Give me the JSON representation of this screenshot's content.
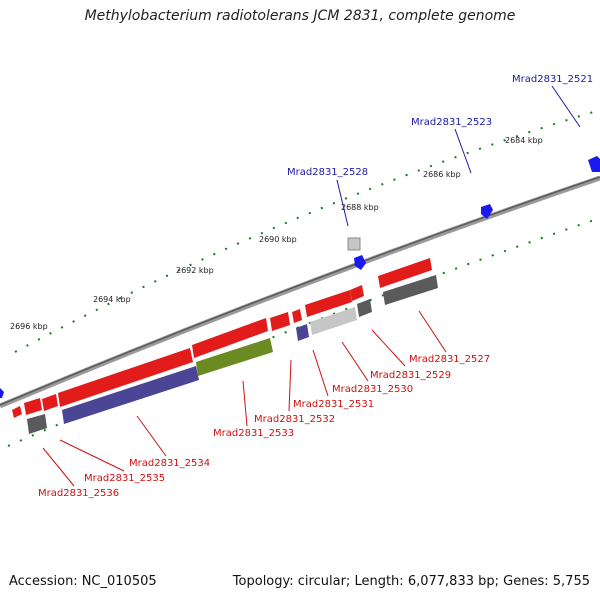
{
  "title": "Methylobacterium radiotolerans JCM 2831, complete genome",
  "footer": {
    "accession_label": "Accession:",
    "accession": "NC_010505",
    "topology_label": "Topology:",
    "topology": "circular",
    "length_label": "Length:",
    "length": "6,077,833 bp",
    "genes_label": "Genes:",
    "genes": "5,755"
  },
  "ticks": [
    "2684 kbp",
    "2686 kbp",
    "2688 kbp",
    "2690 kbp",
    "2692 kbp",
    "2694 kbp",
    "2696 kbp"
  ],
  "genes_top": [
    "Mrad2831_2521",
    "Mrad2831_2523",
    "Mrad2831_2528"
  ],
  "genes_bottom": [
    "Mrad2831_2527",
    "Mrad2831_2529",
    "Mrad2831_2530",
    "Mrad2831_2531",
    "Mrad2831_2532",
    "Mrad2831_2533",
    "Mrad2831_2534",
    "Mrad2831_2535",
    "Mrad2831_2536"
  ],
  "colors": {
    "forward_label": "#1a1aa6",
    "reverse_label": "#cc1111",
    "gene_red": "#e21b1b",
    "gene_blue": "#1a1aee",
    "gene_purple": "#4b4595",
    "gene_green": "#6c8a22",
    "gene_gray_dark": "#5a5a5a",
    "gene_gray_light": "#c6c6c6",
    "backbone": "#7a7a7a",
    "tick_dots": "#1b7a1b"
  }
}
